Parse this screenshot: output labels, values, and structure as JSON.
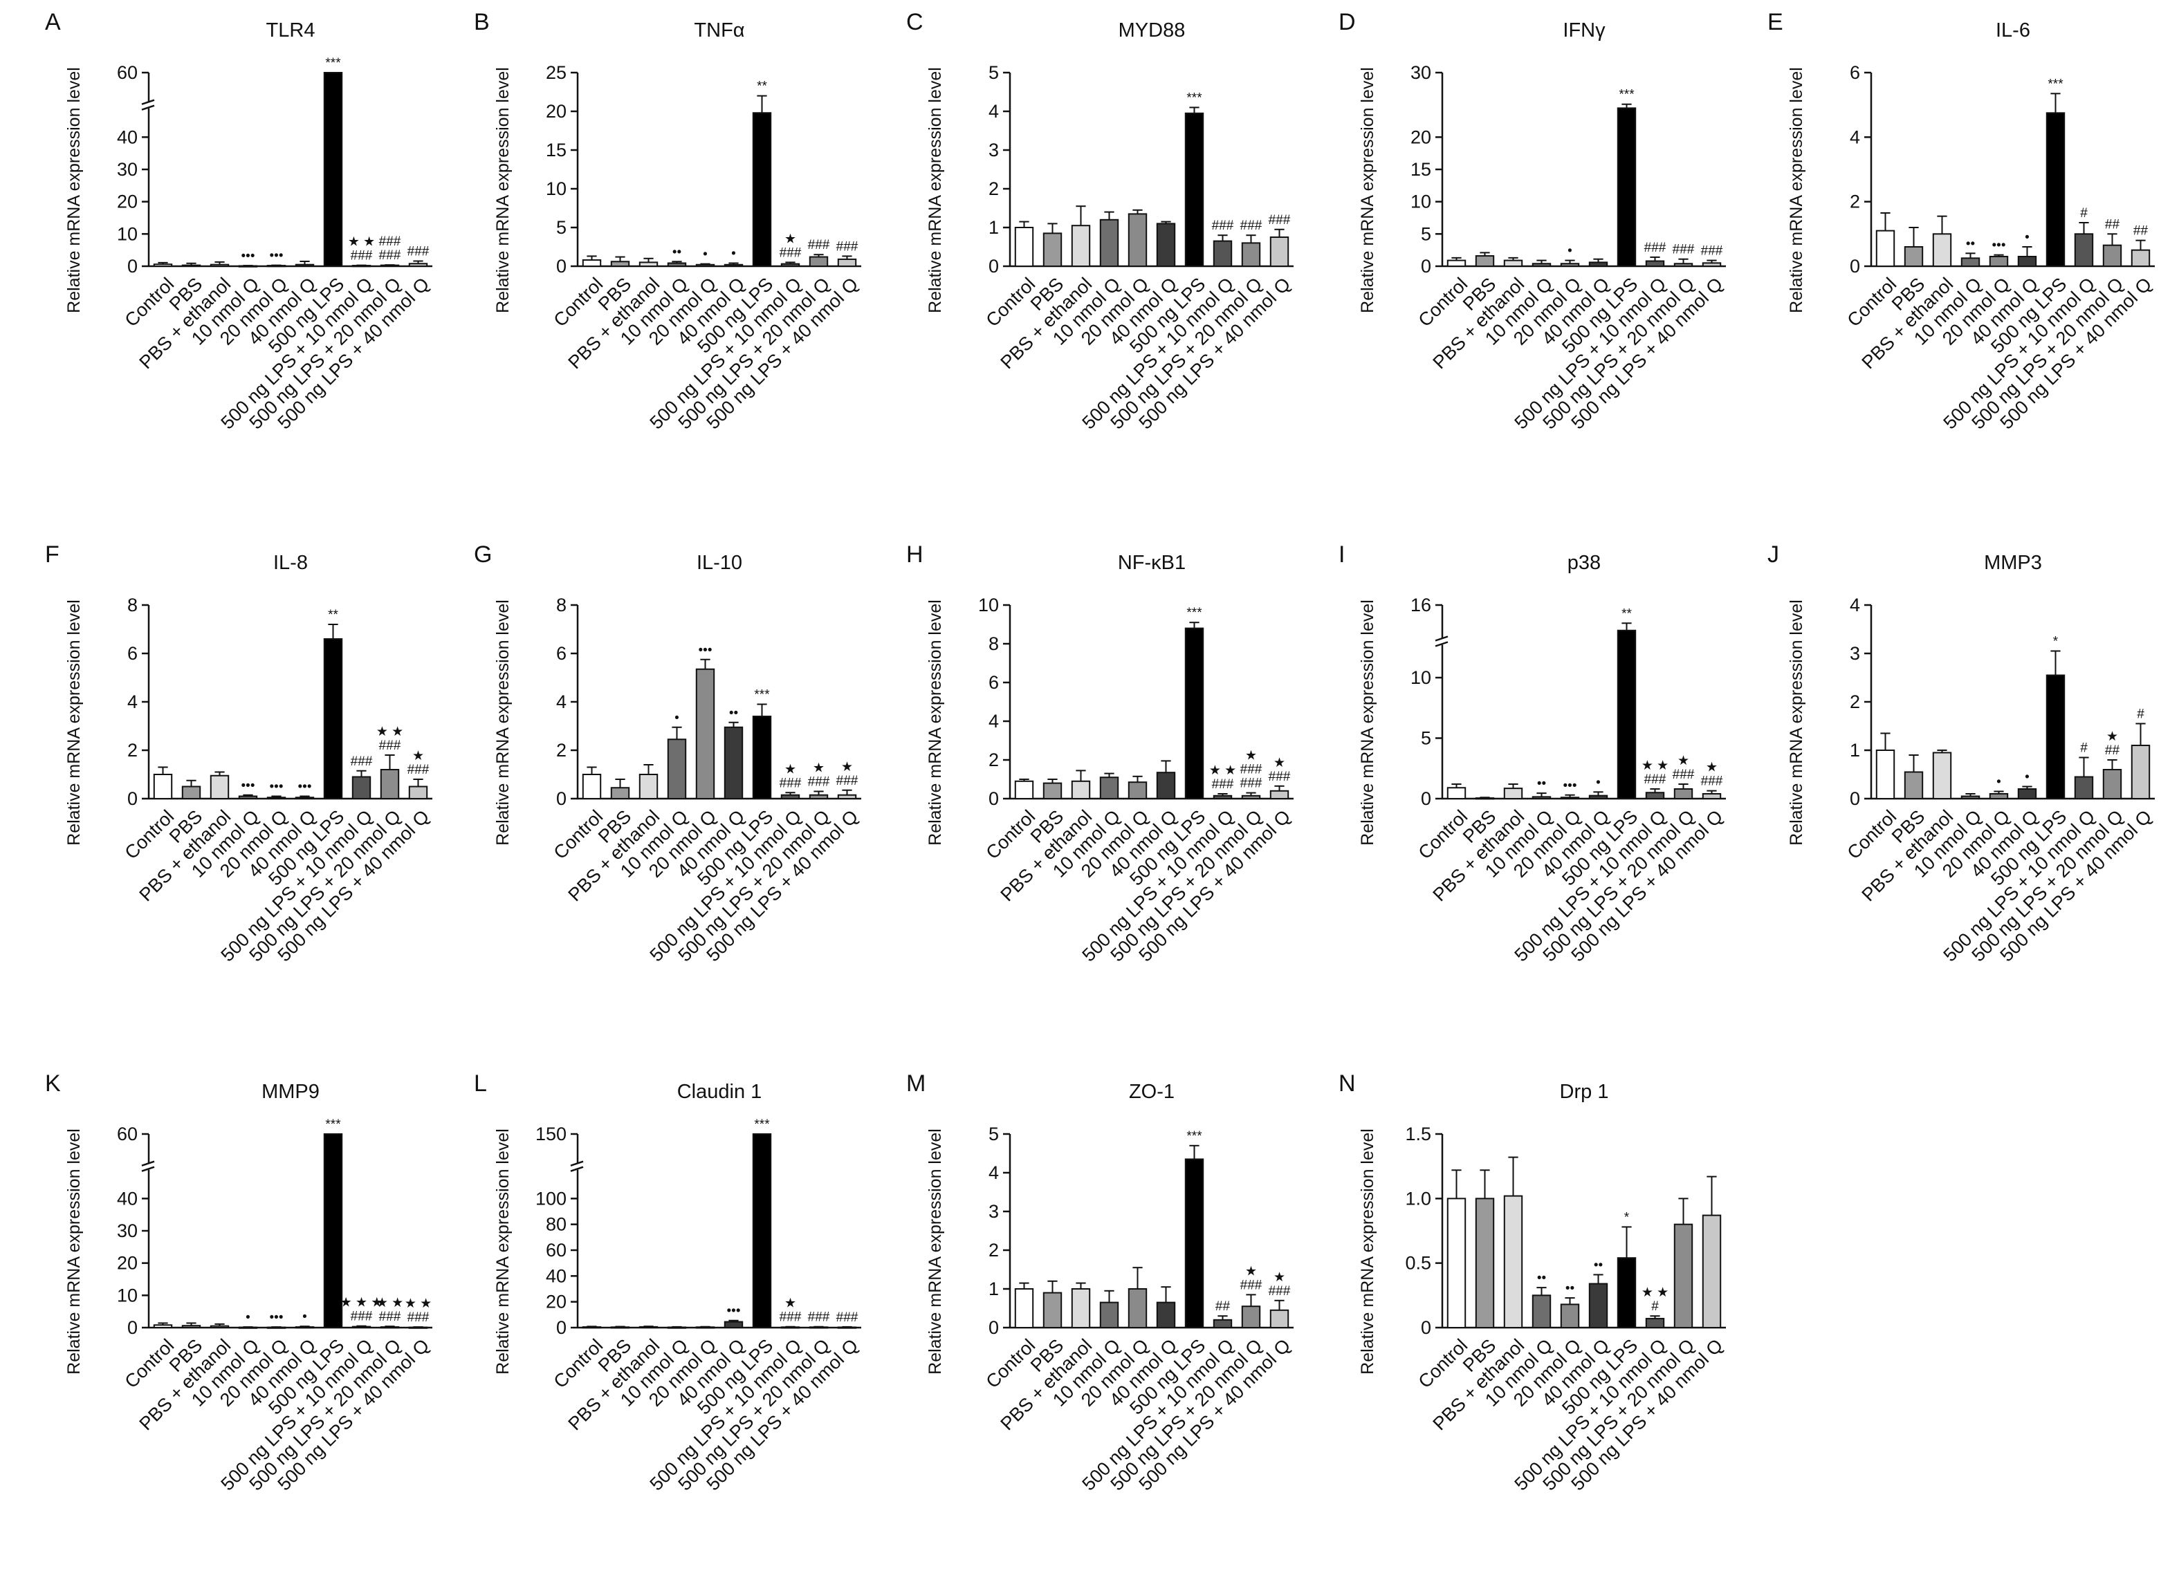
{
  "figure": {
    "categories": [
      "Control",
      "PBS",
      "PBS + ethanol",
      "10 nmol Q",
      "20 nmol Q",
      "40 nmol Q",
      "500 ng LPS",
      "500 ng LPS + 10 nmol Q",
      "500 ng LPS + 20 nmol Q",
      "500 ng LPS + 40 nmol Q"
    ],
    "y_axis_label": "Relative mRNA expression level",
    "bar_fill_colors": [
      "#ffffff",
      "#9a9a9a",
      "#dcdcdc",
      "#6e6e6e",
      "#8a8a8a",
      "#3a3a3a",
      "#000000",
      "#555555",
      "#8c8c8c",
      "#c8c8c8"
    ],
    "legend": []
  },
  "chart_data": [
    {
      "type": "bar",
      "letter": "A",
      "title": "TLR4",
      "ylabel": "Relative mRNA expression level",
      "ylim": [
        0,
        60
      ],
      "ticks": [
        "0",
        "10",
        "20",
        "30",
        "40",
        "60"
      ],
      "axis_break": true,
      "values": [
        0.6,
        0.3,
        0.5,
        0.1,
        0.2,
        0.5,
        60,
        0.2,
        0.3,
        0.8
      ],
      "errors": [
        0.5,
        0.6,
        0.8,
        0.1,
        0.1,
        1.0,
        1.0,
        0.1,
        0.1,
        0.8
      ],
      "annotations": [
        [
          "",
          "",
          "",
          "•••",
          "•••",
          "",
          "***",
          "★ ★\n###",
          "###\n###",
          ""
        ],
        [
          "",
          "",
          "",
          "",
          "",
          "",
          "",
          "",
          "",
          "###"
        ]
      ]
    },
    {
      "type": "bar",
      "letter": "B",
      "title": "TNFα",
      "ylabel": "Relative mRNA expression level",
      "ylim": [
        0,
        25
      ],
      "ticks": [
        "0",
        "5",
        "10",
        "15",
        "20",
        "25"
      ],
      "values": [
        0.8,
        0.6,
        0.5,
        0.4,
        0.2,
        0.2,
        19.8,
        0.3,
        1.2,
        0.9
      ],
      "errors": [
        0.5,
        0.6,
        0.5,
        0.2,
        0.1,
        0.2,
        2.2,
        0.2,
        0.3,
        0.4
      ],
      "annotations": [
        [
          "",
          "",
          "",
          "••",
          "•",
          "•",
          "**",
          "★\n###",
          "###",
          "###"
        ]
      ]
    },
    {
      "type": "bar",
      "letter": "C",
      "title": "MYD88",
      "ylabel": "Relative mRNA expression level",
      "ylim": [
        0,
        5
      ],
      "ticks": [
        "0",
        "1",
        "2",
        "3",
        "4",
        "5"
      ],
      "values": [
        1.0,
        0.85,
        1.05,
        1.2,
        1.35,
        1.1,
        3.95,
        0.65,
        0.6,
        0.75
      ],
      "errors": [
        0.15,
        0.25,
        0.5,
        0.2,
        0.1,
        0.05,
        0.15,
        0.15,
        0.2,
        0.2
      ],
      "annotations": [
        [
          "",
          "",
          "",
          "",
          "",
          "",
          "***",
          "###",
          "###",
          "###"
        ]
      ]
    },
    {
      "type": "bar",
      "letter": "D",
      "title": "IFNγ",
      "ylabel": "Relative mRNA expression level",
      "ylim": [
        0,
        30
      ],
      "ticks": [
        "0",
        "5",
        "10",
        "15",
        "20",
        "30"
      ],
      "values": [
        0.9,
        1.6,
        0.9,
        0.4,
        0.4,
        0.6,
        24.5,
        0.8,
        0.4,
        0.5
      ],
      "errors": [
        0.4,
        0.5,
        0.4,
        0.5,
        0.5,
        0.5,
        0.6,
        0.6,
        0.7,
        0.4
      ],
      "annotations": [
        [
          "",
          "",
          "",
          "",
          "•",
          "",
          "***",
          "###",
          "###",
          "###"
        ]
      ]
    },
    {
      "type": "bar",
      "letter": "E",
      "title": "IL-6",
      "ylabel": "Relative mRNA expression level",
      "ylim": [
        0,
        6
      ],
      "ticks": [
        "0",
        "2",
        "4",
        "6"
      ],
      "values": [
        1.1,
        0.6,
        1.0,
        0.25,
        0.3,
        0.3,
        4.75,
        1.0,
        0.65,
        0.5
      ],
      "errors": [
        0.55,
        0.6,
        0.55,
        0.15,
        0.05,
        0.3,
        0.6,
        0.35,
        0.35,
        0.3
      ],
      "annotations": [
        [
          "",
          "",
          "",
          "••",
          "•••",
          "•",
          "***",
          "#",
          "##",
          "##"
        ]
      ]
    },
    {
      "type": "bar",
      "letter": "F",
      "title": "IL-8",
      "ylabel": "Relative mRNA expression level",
      "ylim": [
        0,
        8
      ],
      "ticks": [
        "0",
        "2",
        "4",
        "6",
        "8"
      ],
      "values": [
        1.0,
        0.5,
        0.95,
        0.1,
        0.05,
        0.05,
        6.6,
        0.9,
        1.2,
        0.5
      ],
      "errors": [
        0.3,
        0.25,
        0.15,
        0.05,
        0.05,
        0.05,
        0.6,
        0.25,
        0.6,
        0.3
      ],
      "annotations": [
        [
          "",
          "",
          "",
          "•••",
          "•••",
          "•••",
          "**",
          "###",
          "★ ★\n###",
          "★\n###"
        ]
      ]
    },
    {
      "type": "bar",
      "letter": "G",
      "title": "IL-10",
      "ylabel": "Relative mRNA expression level",
      "ylim": [
        0,
        8
      ],
      "ticks": [
        "0",
        "2",
        "4",
        "6",
        "8"
      ],
      "values": [
        1.0,
        0.45,
        1.0,
        2.45,
        5.35,
        2.95,
        3.4,
        0.15,
        0.15,
        0.15
      ],
      "errors": [
        0.3,
        0.35,
        0.4,
        0.5,
        0.4,
        0.2,
        0.5,
        0.1,
        0.15,
        0.2
      ],
      "annotations": [
        [
          "",
          "",
          "",
          "•",
          "•••",
          "••",
          "***",
          "★\n###",
          "★\n###",
          "★\n###"
        ]
      ]
    },
    {
      "type": "bar",
      "letter": "H",
      "title": "NF-κB1",
      "ylabel": "Relative mRNA expression level",
      "ylim": [
        0,
        10
      ],
      "ticks": [
        "0",
        "2",
        "4",
        "6",
        "8",
        "10"
      ],
      "values": [
        0.9,
        0.8,
        0.9,
        1.1,
        0.85,
        1.35,
        8.8,
        0.15,
        0.15,
        0.4
      ],
      "errors": [
        0.1,
        0.2,
        0.55,
        0.2,
        0.3,
        0.6,
        0.3,
        0.1,
        0.15,
        0.25
      ],
      "annotations": [
        [
          "",
          "",
          "",
          "",
          "",
          "",
          "***",
          "★ ★\n###",
          "★\n###\n###",
          "★\n###"
        ]
      ]
    },
    {
      "type": "bar",
      "letter": "I",
      "title": "p38",
      "ylabel": "Relative mRNA expression level",
      "ylim": [
        0,
        16
      ],
      "ticks": [
        "0",
        "5",
        "10",
        "16"
      ],
      "axis_break": true,
      "values": [
        0.9,
        0.05,
        0.85,
        0.15,
        0.1,
        0.25,
        13.9,
        0.5,
        0.8,
        0.4
      ],
      "errors": [
        0.3,
        0.05,
        0.35,
        0.3,
        0.2,
        0.3,
        0.6,
        0.3,
        0.4,
        0.25
      ],
      "annotations": [
        [
          "",
          "",
          "",
          "••",
          "•••",
          "•",
          "**",
          "★ ★\n###",
          "★\n###",
          "★\n###"
        ]
      ]
    },
    {
      "type": "bar",
      "letter": "J",
      "title": "MMP3",
      "ylabel": "Relative mRNA expression level",
      "ylim": [
        0,
        4
      ],
      "ticks": [
        "0",
        "1",
        "2",
        "3",
        "4"
      ],
      "values": [
        1.0,
        0.55,
        0.95,
        0.05,
        0.1,
        0.2,
        2.55,
        0.45,
        0.6,
        1.1
      ],
      "errors": [
        0.35,
        0.35,
        0.05,
        0.05,
        0.05,
        0.05,
        0.5,
        0.4,
        0.2,
        0.45
      ],
      "annotations": [
        [
          "",
          "",
          "",
          "",
          "•",
          "•",
          "*",
          "#",
          "★\n##",
          "#"
        ]
      ]
    },
    {
      "type": "bar",
      "letter": "K",
      "title": "MMP9",
      "ylabel": "Relative mRNA expression level",
      "ylim": [
        0,
        60
      ],
      "ticks": [
        "0",
        "10",
        "20",
        "30",
        "40",
        "60"
      ],
      "axis_break": true,
      "values": [
        0.8,
        0.6,
        0.5,
        0.1,
        0.1,
        0.2,
        60,
        0.3,
        0.2,
        0.1
      ],
      "errors": [
        0.6,
        0.8,
        0.6,
        0.1,
        0.1,
        0.2,
        0.6,
        0.2,
        0.2,
        0.1
      ],
      "annotations": [
        [
          "",
          "",
          "",
          "•",
          "•••",
          "•",
          "***",
          "★ ★ ★\n###",
          "★ ★\n###",
          "★ ★\n###"
        ]
      ]
    },
    {
      "type": "bar",
      "letter": "L",
      "title": "Claudin 1",
      "ylabel": "Relative mRNA expression level",
      "ylim": [
        0,
        150
      ],
      "ticks": [
        "0",
        "20",
        "40",
        "60",
        "80",
        "100",
        "150"
      ],
      "axis_break": true,
      "values": [
        0.5,
        0.4,
        0.6,
        0.3,
        0.4,
        4.5,
        150,
        0.4,
        0.4,
        0.3
      ],
      "errors": [
        0.4,
        0.4,
        0.4,
        0.3,
        0.3,
        1.0,
        1.5,
        0.3,
        0.3,
        0.3
      ],
      "annotations": [
        [
          "",
          "",
          "",
          "",
          "",
          "•••",
          "***",
          "★\n###",
          "###",
          "###"
        ]
      ]
    },
    {
      "type": "bar",
      "letter": "M",
      "title": "ZO-1",
      "ylabel": "Relative mRNA expression level",
      "ylim": [
        0,
        5
      ],
      "ticks": [
        "0",
        "1",
        "2",
        "3",
        "4",
        "5"
      ],
      "values": [
        1.0,
        0.9,
        1.0,
        0.65,
        1.0,
        0.65,
        4.35,
        0.2,
        0.55,
        0.45
      ],
      "errors": [
        0.15,
        0.3,
        0.15,
        0.3,
        0.55,
        0.4,
        0.35,
        0.1,
        0.3,
        0.25
      ],
      "annotations": [
        [
          "",
          "",
          "",
          "",
          "",
          "",
          "***",
          "##",
          "★\n###",
          "★\n###"
        ]
      ]
    },
    {
      "type": "bar",
      "letter": "N",
      "title": "Drp 1",
      "ylabel": "Relative mRNA expression level",
      "ylim": [
        0,
        1.5
      ],
      "ticks": [
        "0",
        "0.5",
        "1.0",
        "1.5"
      ],
      "values": [
        1.0,
        1.0,
        1.02,
        0.25,
        0.18,
        0.34,
        0.54,
        0.07,
        0.8,
        0.87
      ],
      "errors": [
        0.22,
        0.22,
        0.3,
        0.06,
        0.05,
        0.07,
        0.24,
        0.02,
        0.2,
        0.3
      ],
      "annotations": [
        [
          "",
          "",
          "",
          "••",
          "••",
          "••",
          "*",
          "★ ★\n#",
          "",
          ""
        ]
      ]
    }
  ]
}
